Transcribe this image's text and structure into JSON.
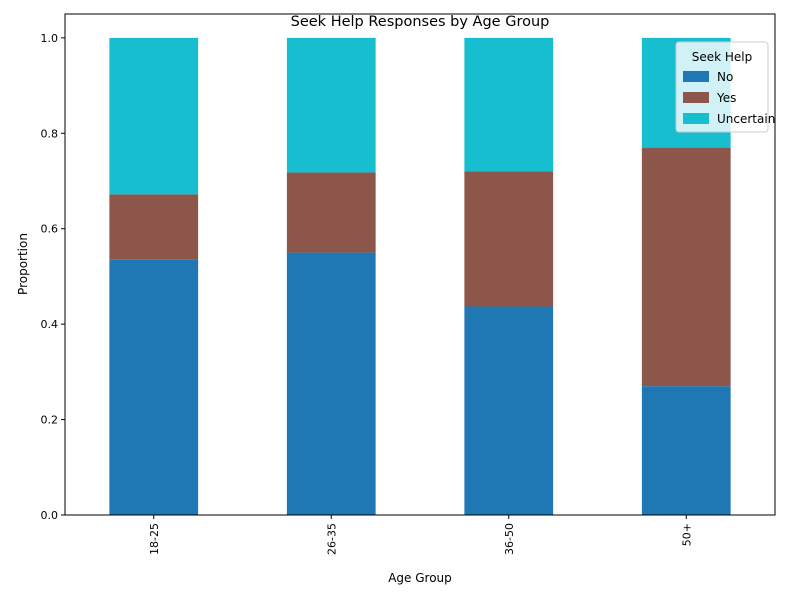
{
  "chart_data": {
    "type": "bar",
    "stacked": true,
    "title": "Seek Help Responses by Age Group",
    "xlabel": "Age Group",
    "ylabel": "Proportion",
    "categories": [
      "18-25",
      "26-35",
      "36-50",
      "50+"
    ],
    "series": [
      {
        "name": "No",
        "color": "#1f77b4",
        "values": [
          0.535,
          0.55,
          0.437,
          0.27
        ]
      },
      {
        "name": "Yes",
        "color": "#8c564b",
        "values": [
          0.137,
          0.168,
          0.283,
          0.5
        ]
      },
      {
        "name": "Uncertain",
        "color": "#17becf",
        "values": [
          0.328,
          0.282,
          0.28,
          0.23
        ]
      }
    ],
    "ylim": [
      0,
      1.05
    ],
    "yticks": [
      0.0,
      0.2,
      0.4,
      0.6,
      0.8,
      1.0
    ],
    "ytick_labels": [
      "0.0",
      "0.2",
      "0.4",
      "0.6",
      "0.8",
      "1.0"
    ],
    "grid": false,
    "legend": {
      "title": "Seek Help",
      "placement": "top-right"
    }
  }
}
